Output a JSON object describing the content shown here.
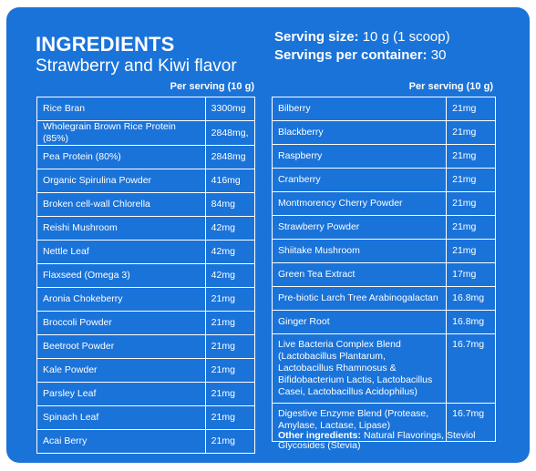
{
  "header": {
    "title": "INGREDIENTS",
    "subtitle": "Strawberry and Kiwi flavor",
    "serving_size_label": "Serving size:",
    "serving_size_value": "10 g (1 scoop)",
    "servings_label": "Servings per container:",
    "servings_value": "30"
  },
  "left_column": {
    "header": "Per serving (10 g)",
    "rows": [
      {
        "name": "Rice Bran",
        "value": "3300mg"
      },
      {
        "name": "Wholegrain Brown Rice Protein (85%)",
        "value": "2848mg,"
      },
      {
        "name": "Pea Protein (80%)",
        "value": "2848mg"
      },
      {
        "name": "Organic Spirulina Powder",
        "value": "416mg"
      },
      {
        "name": "Broken cell-wall Chlorella",
        "value": "84mg"
      },
      {
        "name": "Reishi Mushroom",
        "value": "42mg"
      },
      {
        "name": "Nettle Leaf",
        "value": "42mg"
      },
      {
        "name": "Flaxseed (Omega 3)",
        "value": "42mg"
      },
      {
        "name": "Aronia Chokeberry",
        "value": "21mg"
      },
      {
        "name": "Broccoli Powder",
        "value": "21mg"
      },
      {
        "name": "Beetroot Powder",
        "value": "21mg"
      },
      {
        "name": "Kale Powder",
        "value": "21mg"
      },
      {
        "name": "Parsley Leaf",
        "value": "21mg"
      },
      {
        "name": "Spinach Leaf",
        "value": "21mg"
      },
      {
        "name": "Acai Berry",
        "value": "21mg"
      }
    ]
  },
  "right_column": {
    "header": "Per serving (10 g)",
    "rows": [
      {
        "name": "Bilberry",
        "value": "21mg"
      },
      {
        "name": "Blackberry",
        "value": "21mg"
      },
      {
        "name": "Raspberry",
        "value": "21mg"
      },
      {
        "name": "Cranberry",
        "value": "21mg"
      },
      {
        "name": "Montmorency Cherry Powder",
        "value": "21mg"
      },
      {
        "name": "Strawberry Powder",
        "value": "21mg"
      },
      {
        "name": "Shiitake Mushroom",
        "value": "21mg"
      },
      {
        "name": "Green Tea Extract",
        "value": "17mg"
      },
      {
        "name": "Pre-biotic Larch Tree Arabinogalactan",
        "value": "16.8mg"
      },
      {
        "name": "Ginger Root",
        "value": "16.8mg"
      },
      {
        "name": "Live Bacteria Complex Blend (Lactobacillus Plantarum, Lactobacillus Rhamnosus & Bifidobacterium Lactis, Lactobacillus Casei, Lactobacillus Acidophilus)",
        "value": "16.7mg"
      },
      {
        "name": "Digestive Enzyme Blend (Protease, Amylase, Lactase, Lipase)",
        "value": "16.7mg"
      }
    ]
  },
  "other_ingredients": {
    "label": "Other ingredients:",
    "text": "Natural Flavorings, Steviol Glycosides (Stevia)"
  },
  "colors": {
    "panel": "#1a73d9",
    "text": "#ffffff"
  }
}
